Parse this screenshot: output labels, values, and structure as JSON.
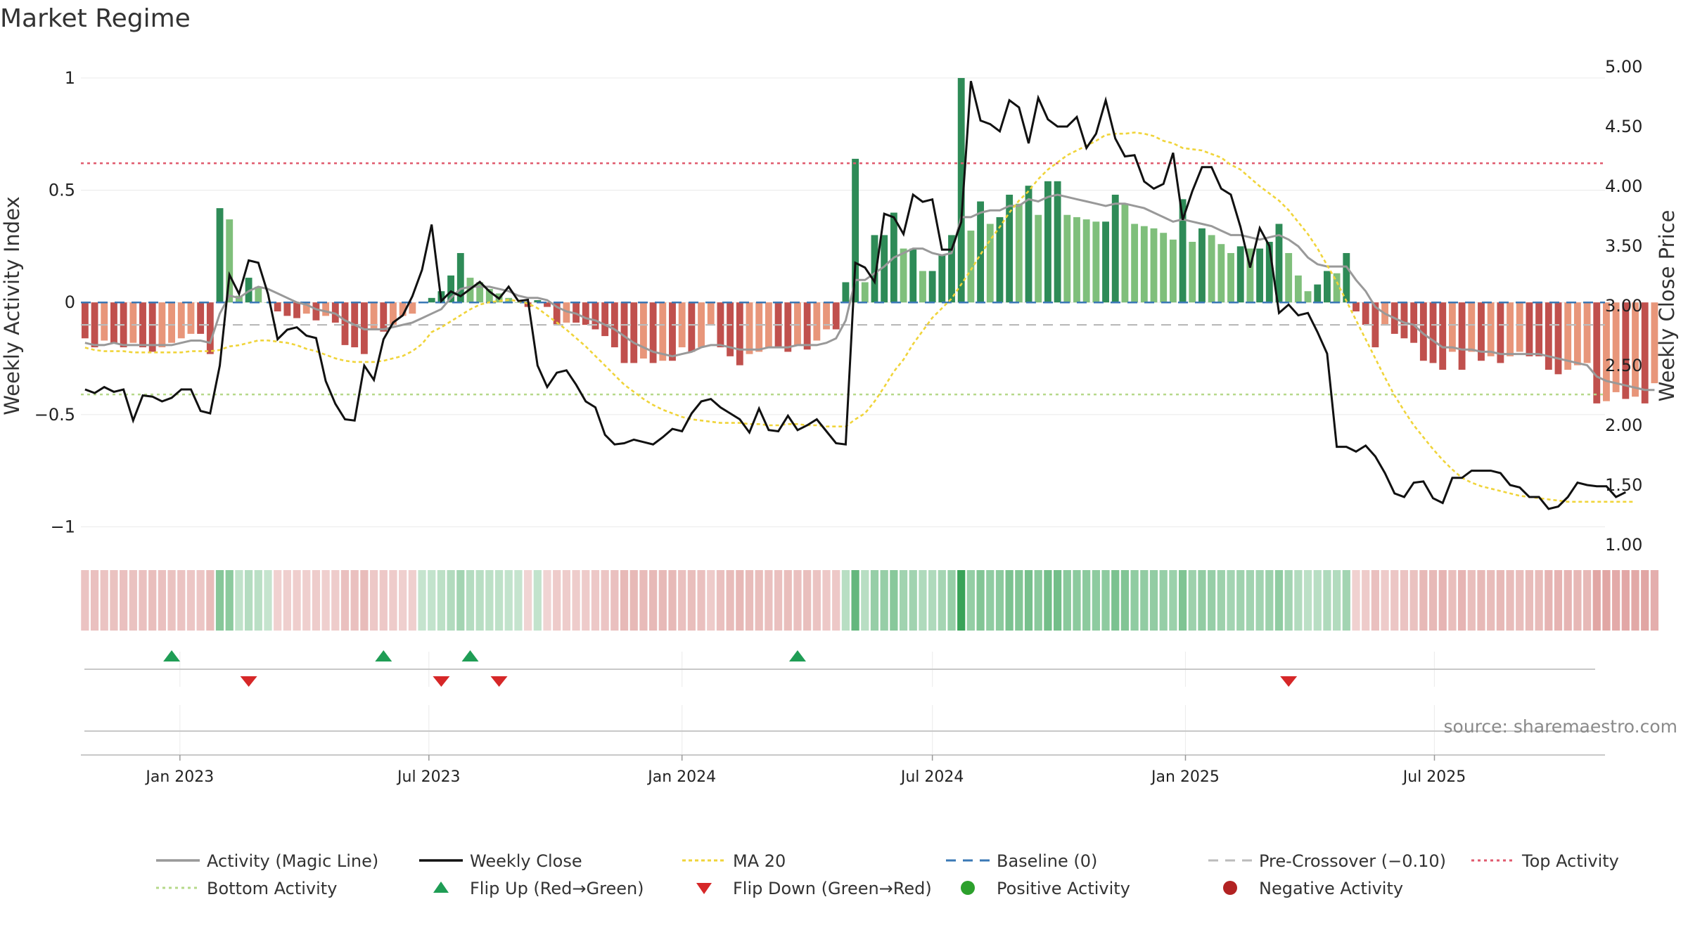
{
  "title": "Market Regime",
  "source": "source: sharemaestro.com",
  "colors": {
    "pos_dark": "#2e8b57",
    "pos_light": "#7fbf7b",
    "neg_dark": "#c0504d",
    "neg_light": "#e8967a",
    "magic": "#999999",
    "close": "#111111",
    "ma20": "#f0d43a",
    "baseline": "#3a78b5",
    "pre": "#bbbbbb",
    "top": "#e05a6e",
    "bottom": "#b6d98a",
    "flip_up": "#1f9d55",
    "flip_down": "#d62728",
    "pos_dot": "#2ca02c",
    "neg_dot": "#b22222"
  },
  "chart_data": {
    "type": "bar",
    "x_start": "2022-10-24",
    "x_step_days": 7,
    "xlim": [
      "2022-10-21",
      "2025-11-02"
    ],
    "x_ticks": [
      "Jan 2023",
      "Jul 2023",
      "Jan 2024",
      "Jul 2024",
      "Jan 2025",
      "Jul 2025"
    ],
    "x_tick_dates": [
      "2023-01-01",
      "2023-07-01",
      "2024-01-01",
      "2024-07-01",
      "2025-01-01",
      "2025-07-01"
    ],
    "left_axis": {
      "label": "Weekly Activity Index",
      "ylim": [
        -1.08,
        1.05
      ],
      "ticks": [
        -1,
        -0.5,
        0,
        0.5,
        1
      ],
      "tick_labels": [
        "−1",
        "−0.5",
        "0",
        "0.5",
        "1"
      ]
    },
    "right_axis": {
      "label": "Weekly Close Price",
      "ylim": [
        1.0,
        5.0
      ],
      "ticks": [
        1.0,
        1.5,
        2.0,
        2.5,
        3.0,
        3.5,
        4.0,
        4.5,
        5.0
      ],
      "tick_labels": [
        "1.00",
        "1.50",
        "2.00",
        "2.50",
        "3.00",
        "3.50",
        "4.00",
        "4.50",
        "5.00"
      ]
    },
    "levels": {
      "baseline": 0,
      "pre_crossover": -0.1,
      "top_activity": 0.62,
      "bottom_activity": -0.41
    },
    "activity": [
      -0.16,
      -0.2,
      -0.17,
      -0.18,
      -0.2,
      -0.18,
      -0.2,
      -0.22,
      -0.2,
      -0.18,
      -0.16,
      -0.14,
      -0.14,
      -0.23,
      0.42,
      0.37,
      0.03,
      0.11,
      0.07,
      0.0,
      -0.04,
      -0.06,
      -0.07,
      -0.05,
      -0.08,
      -0.06,
      -0.09,
      -0.19,
      -0.2,
      -0.23,
      -0.12,
      -0.13,
      -0.1,
      -0.06,
      -0.05,
      0.0,
      0.02,
      0.05,
      0.12,
      0.22,
      0.11,
      0.09,
      0.06,
      0.04,
      0.02,
      0.0,
      -0.02,
      0.01,
      -0.02,
      -0.1,
      -0.09,
      -0.09,
      -0.1,
      -0.12,
      -0.15,
      -0.2,
      -0.27,
      -0.27,
      -0.25,
      -0.27,
      -0.26,
      -0.26,
      -0.2,
      -0.22,
      -0.2,
      -0.1,
      -0.2,
      -0.24,
      -0.28,
      -0.23,
      -0.22,
      -0.2,
      -0.2,
      -0.22,
      -0.19,
      -0.21,
      -0.17,
      -0.12,
      -0.12,
      0.09,
      0.64,
      0.09,
      0.3,
      0.3,
      0.4,
      0.24,
      0.24,
      0.14,
      0.14,
      0.21,
      0.3,
      1.0,
      0.32,
      0.45,
      0.35,
      0.38,
      0.48,
      0.44,
      0.52,
      0.39,
      0.54,
      0.54,
      0.39,
      0.38,
      0.37,
      0.36,
      0.36,
      0.48,
      0.44,
      0.35,
      0.34,
      0.33,
      0.31,
      0.28,
      0.46,
      0.27,
      0.33,
      0.3,
      0.26,
      0.22,
      0.25,
      0.24,
      0.24,
      0.27,
      0.35,
      0.22,
      0.12,
      0.05,
      0.08,
      0.14,
      0.13,
      0.22,
      -0.04,
      -0.1,
      -0.2,
      -0.1,
      -0.14,
      -0.16,
      -0.18,
      -0.26,
      -0.27,
      -0.3,
      -0.22,
      -0.3,
      -0.22,
      -0.26,
      -0.24,
      -0.27,
      -0.24,
      -0.22,
      -0.24,
      -0.24,
      -0.3,
      -0.32,
      -0.3,
      -0.28,
      -0.27,
      -0.45,
      -0.44,
      -0.4,
      -0.43,
      -0.42,
      -0.45,
      -0.36
    ],
    "magic_line": [
      -0.18,
      -0.19,
      -0.19,
      -0.18,
      -0.19,
      -0.19,
      -0.19,
      -0.19,
      -0.19,
      -0.19,
      -0.18,
      -0.17,
      -0.17,
      -0.18,
      -0.05,
      0.03,
      0.02,
      0.05,
      0.07,
      0.06,
      0.04,
      0.02,
      0.0,
      -0.01,
      -0.03,
      -0.04,
      -0.05,
      -0.08,
      -0.1,
      -0.12,
      -0.12,
      -0.12,
      -0.11,
      -0.1,
      -0.09,
      -0.07,
      -0.05,
      -0.03,
      0.02,
      0.06,
      0.07,
      0.07,
      0.07,
      0.06,
      0.05,
      0.03,
      0.02,
      0.02,
      0.01,
      -0.02,
      -0.04,
      -0.05,
      -0.07,
      -0.08,
      -0.1,
      -0.12,
      -0.15,
      -0.18,
      -0.2,
      -0.22,
      -0.23,
      -0.24,
      -0.23,
      -0.22,
      -0.2,
      -0.19,
      -0.19,
      -0.2,
      -0.21,
      -0.21,
      -0.21,
      -0.2,
      -0.2,
      -0.2,
      -0.19,
      -0.19,
      -0.19,
      -0.18,
      -0.16,
      -0.08,
      0.1,
      0.1,
      0.13,
      0.16,
      0.2,
      0.22,
      0.24,
      0.24,
      0.22,
      0.21,
      0.22,
      0.38,
      0.38,
      0.4,
      0.41,
      0.41,
      0.43,
      0.43,
      0.46,
      0.45,
      0.47,
      0.48,
      0.47,
      0.46,
      0.45,
      0.44,
      0.43,
      0.44,
      0.44,
      0.43,
      0.42,
      0.4,
      0.38,
      0.36,
      0.37,
      0.36,
      0.35,
      0.34,
      0.32,
      0.3,
      0.3,
      0.29,
      0.28,
      0.29,
      0.3,
      0.28,
      0.25,
      0.2,
      0.17,
      0.16,
      0.16,
      0.16,
      0.1,
      0.05,
      -0.02,
      -0.05,
      -0.07,
      -0.09,
      -0.1,
      -0.14,
      -0.17,
      -0.2,
      -0.2,
      -0.21,
      -0.21,
      -0.22,
      -0.22,
      -0.23,
      -0.23,
      -0.23,
      -0.23,
      -0.23,
      -0.24,
      -0.25,
      -0.26,
      -0.27,
      -0.28,
      -0.33,
      -0.35,
      -0.36,
      -0.37,
      -0.38,
      -0.39,
      -0.39
    ],
    "weekly_close": [
      2.3,
      2.27,
      2.32,
      2.28,
      2.3,
      2.04,
      2.25,
      2.24,
      2.2,
      2.23,
      2.3,
      2.3,
      2.12,
      2.1,
      2.5,
      3.26,
      3.1,
      3.38,
      3.36,
      3.1,
      2.72,
      2.8,
      2.82,
      2.75,
      2.73,
      2.37,
      2.18,
      2.05,
      2.04,
      2.5,
      2.38,
      2.72,
      2.86,
      2.92,
      3.08,
      3.3,
      3.68,
      3.04,
      3.12,
      3.08,
      3.14,
      3.2,
      3.12,
      3.06,
      3.16,
      3.04,
      3.05,
      2.5,
      2.32,
      2.44,
      2.46,
      2.34,
      2.2,
      2.15,
      1.92,
      1.84,
      1.85,
      1.88,
      1.86,
      1.84,
      1.9,
      1.97,
      1.95,
      2.1,
      2.2,
      2.22,
      2.15,
      2.1,
      2.05,
      1.94,
      2.14,
      1.96,
      1.95,
      2.08,
      1.96,
      2.0,
      2.05,
      1.95,
      1.85,
      1.84,
      3.36,
      3.32,
      3.2,
      3.77,
      3.74,
      3.6,
      3.93,
      3.87,
      3.89,
      3.47,
      3.47,
      3.7,
      4.88,
      4.55,
      4.52,
      4.46,
      4.72,
      4.66,
      4.36,
      4.74,
      4.56,
      4.5,
      4.5,
      4.58,
      4.32,
      4.44,
      4.72,
      4.4,
      4.25,
      4.26,
      4.04,
      3.98,
      4.02,
      4.28,
      3.72,
      3.96,
      4.16,
      4.16,
      3.98,
      3.93,
      3.66,
      3.32,
      3.65,
      3.5,
      2.94,
      3.01,
      2.92,
      2.94,
      2.78,
      2.6,
      1.82,
      1.82,
      1.78,
      1.83,
      1.74,
      1.6,
      1.43,
      1.4,
      1.52,
      1.53,
      1.39,
      1.35,
      1.56,
      1.56,
      1.62,
      1.62,
      1.62,
      1.6,
      1.5,
      1.48,
      1.4,
      1.4,
      1.3,
      1.32,
      1.4,
      1.52,
      1.5,
      1.49,
      1.49,
      1.4,
      1.44
    ],
    "ma20": [
      2.65,
      2.63,
      2.62,
      2.62,
      2.62,
      2.61,
      2.61,
      2.61,
      2.61,
      2.61,
      2.61,
      2.62,
      2.62,
      2.62,
      2.63,
      2.66,
      2.67,
      2.69,
      2.71,
      2.71,
      2.7,
      2.69,
      2.67,
      2.64,
      2.62,
      2.59,
      2.56,
      2.54,
      2.53,
      2.53,
      2.53,
      2.54,
      2.56,
      2.58,
      2.62,
      2.68,
      2.78,
      2.82,
      2.87,
      2.92,
      2.97,
      3.01,
      3.03,
      3.04,
      3.05,
      3.04,
      3.02,
      2.98,
      2.92,
      2.86,
      2.8,
      2.73,
      2.66,
      2.58,
      2.5,
      2.42,
      2.34,
      2.28,
      2.22,
      2.17,
      2.13,
      2.1,
      2.07,
      2.05,
      2.04,
      2.03,
      2.02,
      2.02,
      2.02,
      2.01,
      2.01,
      2.0,
      2.0,
      2.01,
      2.01,
      2.0,
      2.0,
      1.99,
      1.99,
      1.99,
      2.05,
      2.1,
      2.2,
      2.32,
      2.45,
      2.55,
      2.68,
      2.79,
      2.9,
      2.98,
      3.06,
      3.18,
      3.3,
      3.43,
      3.55,
      3.66,
      3.78,
      3.88,
      3.96,
      4.06,
      4.14,
      4.2,
      4.26,
      4.3,
      4.34,
      4.38,
      4.43,
      4.44,
      4.44,
      4.45,
      4.44,
      4.42,
      4.38,
      4.36,
      4.32,
      4.31,
      4.3,
      4.27,
      4.24,
      4.18,
      4.14,
      4.07,
      4.0,
      3.94,
      3.88,
      3.8,
      3.7,
      3.6,
      3.48,
      3.34,
      3.2,
      3.04,
      2.88,
      2.72,
      2.56,
      2.4,
      2.25,
      2.12,
      2.0,
      1.9,
      1.8,
      1.71,
      1.63,
      1.56,
      1.52,
      1.49,
      1.47,
      1.45,
      1.43,
      1.41,
      1.4,
      1.39,
      1.38,
      1.37,
      1.36,
      1.36,
      1.36,
      1.36,
      1.36,
      1.36,
      1.36,
      1.36
    ],
    "flip_up": [
      "2022-12-26",
      "2023-05-29",
      "2023-07-31",
      "2024-03-25"
    ],
    "flip_down": [
      "2023-02-20",
      "2023-07-10",
      "2023-08-21",
      "2025-03-17"
    ],
    "legend": [
      "Activity (Magic Line)",
      "Weekly Close",
      "MA 20",
      "Baseline (0)",
      "Pre-Crossover (−0.10)",
      "Top Activity",
      "Bottom Activity",
      "Flip Up (Red→Green)",
      "Flip Down (Green→Red)",
      "Positive Activity",
      "Negative Activity"
    ]
  }
}
